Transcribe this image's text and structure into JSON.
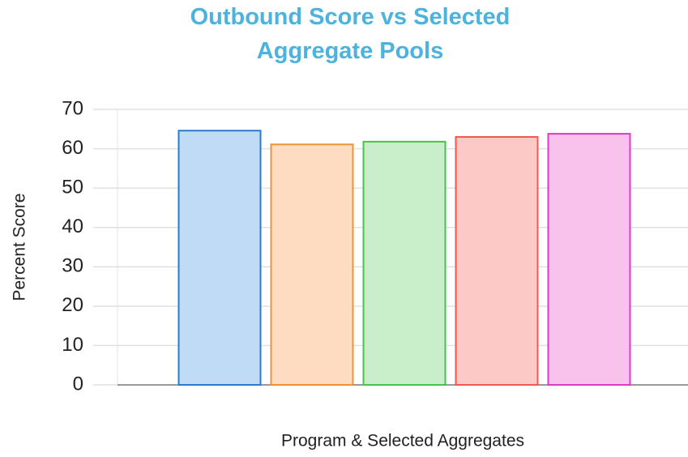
{
  "chart_data": {
    "type": "bar",
    "title": "Outbound Score vs Selected Aggregate Pools",
    "xlabel": "Program & Selected Aggregates",
    "ylabel": "Percent Score",
    "categories": [
      null,
      null,
      null,
      null,
      null
    ],
    "values": [
      64.6,
      61.1,
      61.8,
      63.0,
      63.8
    ],
    "colors": [
      "#bfdbf5",
      "#fddcc2",
      "#c8efca",
      "#fdc9c6",
      "#f8c2ed"
    ],
    "edge_colors": [
      "#2a7bd0",
      "#f0923c",
      "#45c24f",
      "#ee5a52",
      "#dd3bc6"
    ],
    "ylim": [
      0,
      70
    ],
    "yticks": [
      0,
      10,
      20,
      30,
      40,
      50,
      60,
      70
    ],
    "grid": true
  }
}
